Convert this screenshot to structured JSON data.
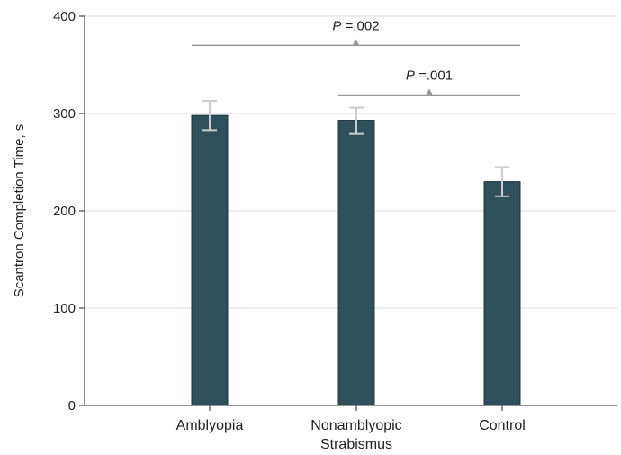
{
  "chart_data": {
    "type": "bar",
    "ylabel": "Scantron Completion Time, s",
    "xlabel": "",
    "ylim": [
      0,
      400
    ],
    "yticks": [
      0,
      100,
      200,
      300,
      400
    ],
    "grid": true,
    "bar_color": "#2e4f5c",
    "error_color": "#cccccc",
    "bracket_color": "#999999",
    "categories": [
      [
        "Amblyopia"
      ],
      [
        "Nonamblyopic",
        "Strabismus"
      ],
      [
        "Control"
      ]
    ],
    "values": [
      298,
      293,
      230
    ],
    "error_low": [
      283,
      279,
      215
    ],
    "error_high": [
      313,
      306,
      245
    ],
    "comparisons": [
      {
        "label_prefix": "P",
        "label_value": " =.002",
        "from": 0,
        "to": 2,
        "level": 370
      },
      {
        "label_prefix": "P",
        "label_value": " =.001",
        "from": 1,
        "to": 2,
        "level": 319
      }
    ]
  }
}
